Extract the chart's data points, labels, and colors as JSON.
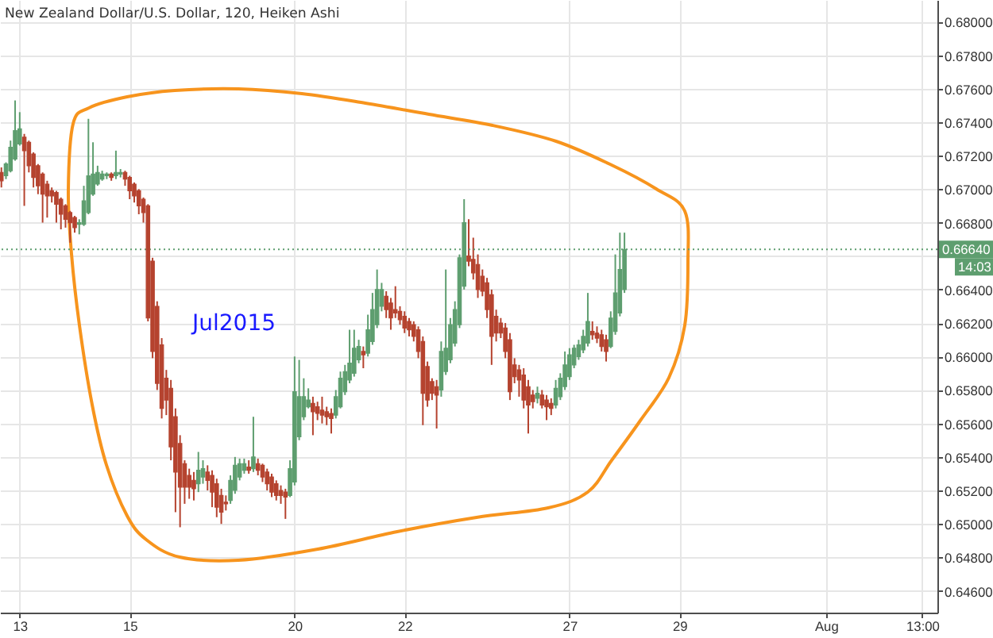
{
  "chart_data": {
    "type": "candlestick",
    "title": "New Zealand Dollar/U.S. Dollar, 120, Heiken Ashi",
    "categories": [
      null,
      null,
      null,
      null,
      "13",
      null,
      null,
      null,
      null,
      null,
      null,
      null,
      null,
      null,
      null,
      null,
      null,
      null,
      null,
      null,
      null,
      null,
      null,
      null,
      null,
      null,
      null,
      null,
      "15",
      null,
      null,
      null,
      null,
      null,
      null,
      null,
      null,
      null,
      null,
      null,
      null,
      null,
      null,
      null,
      null,
      null,
      null,
      null,
      null,
      null,
      null,
      null,
      null,
      null,
      null,
      null,
      null,
      null,
      null,
      null,
      null,
      null,
      null,
      null,
      "20",
      null,
      null,
      null,
      null,
      null,
      null,
      null,
      null,
      null,
      null,
      null,
      null,
      null,
      null,
      null,
      null,
      null,
      null,
      null,
      null,
      null,
      null,
      null,
      "22",
      null,
      null,
      null,
      null,
      null,
      null,
      null,
      null,
      null,
      null,
      null,
      null,
      null,
      null,
      null,
      null,
      null,
      null,
      null,
      null,
      null,
      null,
      null,
      null,
      null,
      null,
      null,
      null,
      null,
      null,
      null,
      null,
      null,
      null,
      null,
      "27",
      null,
      null,
      null,
      null,
      null,
      null,
      null,
      null,
      null,
      null,
      null,
      null,
      null,
      null,
      null,
      null,
      null,
      null,
      null,
      null,
      null,
      null,
      null,
      "29",
      null,
      null,
      null,
      null,
      null,
      null,
      null,
      null,
      null,
      null,
      null,
      null,
      null,
      null,
      null,
      null,
      null,
      null,
      null,
      null,
      null,
      null,
      null,
      null,
      null,
      null,
      null,
      null,
      null,
      null,
      null,
      "Aug",
      null,
      null,
      null,
      null,
      null,
      null,
      null,
      null,
      null,
      null,
      null,
      null,
      null,
      null,
      null,
      null,
      null,
      null,
      null,
      null,
      "13:00",
      null,
      null,
      null
    ],
    "ohlc": [
      [
        0.671,
        0.6713,
        0.6701,
        0.6705
      ],
      [
        0.6708,
        0.6716,
        0.6706,
        0.6715
      ],
      [
        0.6711,
        0.6729,
        0.671,
        0.6725
      ],
      [
        0.6718,
        0.6753,
        0.6717,
        0.6735
      ],
      [
        0.6727,
        0.6746,
        0.6726,
        0.6736
      ],
      [
        0.6731,
        0.6733,
        0.669,
        0.6723
      ],
      [
        0.6728,
        0.6729,
        0.671,
        0.6714
      ],
      [
        0.6721,
        0.6722,
        0.6701,
        0.6707
      ],
      [
        0.6714,
        0.6715,
        0.6697,
        0.6702
      ],
      [
        0.6709,
        0.671,
        0.668,
        0.6697
      ],
      [
        0.6703,
        0.6705,
        0.6683,
        0.6696
      ],
      [
        0.6699,
        0.6701,
        0.6692,
        0.6696
      ],
      [
        0.6698,
        0.6699,
        0.668,
        0.6691
      ],
      [
        0.6694,
        0.6695,
        0.6676,
        0.6685
      ],
      [
        0.669,
        0.6691,
        0.6677,
        0.6682
      ],
      [
        0.6686,
        0.6687,
        0.6668,
        0.668
      ],
      [
        0.6683,
        0.6684,
        0.6674,
        0.6677
      ],
      [
        0.6679,
        0.6682,
        0.6673,
        0.668
      ],
      [
        0.6679,
        0.6702,
        0.6678,
        0.6693
      ],
      [
        0.6686,
        0.6742,
        0.6685,
        0.6708
      ],
      [
        0.6697,
        0.6728,
        0.6696,
        0.6709
      ],
      [
        0.6703,
        0.6714,
        0.6702,
        0.671
      ],
      [
        0.6706,
        0.6711,
        0.6705,
        0.6709
      ],
      [
        0.6708,
        0.671,
        0.6706,
        0.6709
      ],
      [
        0.6709,
        0.671,
        0.6705,
        0.6707
      ],
      [
        0.6708,
        0.6723,
        0.6706,
        0.671
      ],
      [
        0.6709,
        0.6712,
        0.6707,
        0.671
      ],
      [
        0.671,
        0.6711,
        0.6702,
        0.6706
      ],
      [
        0.6707,
        0.6708,
        0.6694,
        0.6699
      ],
      [
        0.6703,
        0.6704,
        0.6692,
        0.6696
      ],
      [
        0.6699,
        0.67,
        0.6685,
        0.669
      ],
      [
        0.6694,
        0.6695,
        0.668,
        0.6686
      ],
      [
        0.669,
        0.6691,
        0.6621,
        0.6623
      ],
      [
        0.6657,
        0.6659,
        0.6599,
        0.6603
      ],
      [
        0.663,
        0.6633,
        0.658,
        0.6584
      ],
      [
        0.6607,
        0.6611,
        0.6563,
        0.6569
      ],
      [
        0.6587,
        0.6592,
        0.6565,
        0.6574
      ],
      [
        0.6581,
        0.6586,
        0.6538,
        0.6546
      ],
      [
        0.6564,
        0.6569,
        0.6507,
        0.6531
      ],
      [
        0.6548,
        0.6553,
        0.6498,
        0.6522
      ],
      [
        0.6536,
        0.6538,
        0.6512,
        0.6522
      ],
      [
        0.6529,
        0.6533,
        0.6515,
        0.6522
      ],
      [
        0.6526,
        0.6531,
        0.6514,
        0.6521
      ],
      [
        0.6524,
        0.6543,
        0.6519,
        0.6532
      ],
      [
        0.6528,
        0.6538,
        0.6524,
        0.6533
      ],
      [
        0.6531,
        0.6535,
        0.652,
        0.6526
      ],
      [
        0.6529,
        0.6532,
        0.651,
        0.6519
      ],
      [
        0.6524,
        0.6527,
        0.6504,
        0.651
      ],
      [
        0.6517,
        0.6521,
        0.65,
        0.6507
      ],
      [
        0.6513,
        0.6517,
        0.6508,
        0.6512
      ],
      [
        0.6514,
        0.6529,
        0.6512,
        0.6526
      ],
      [
        0.652,
        0.654,
        0.6518,
        0.6535
      ],
      [
        0.6528,
        0.6539,
        0.6526,
        0.6536
      ],
      [
        0.6532,
        0.6539,
        0.653,
        0.6536
      ],
      [
        0.6534,
        0.6538,
        0.653,
        0.6532
      ],
      [
        0.6533,
        0.6564,
        0.6531,
        0.654
      ],
      [
        0.6536,
        0.6539,
        0.6529,
        0.6532
      ],
      [
        0.6535,
        0.6536,
        0.6525,
        0.6528
      ],
      [
        0.6531,
        0.6533,
        0.652,
        0.6524
      ],
      [
        0.6528,
        0.653,
        0.6516,
        0.6519
      ],
      [
        0.6524,
        0.6526,
        0.6514,
        0.6517
      ],
      [
        0.652,
        0.6523,
        0.6512,
        0.6517
      ],
      [
        0.6519,
        0.6521,
        0.6503,
        0.6516
      ],
      [
        0.6517,
        0.6538,
        0.6516,
        0.6533
      ],
      [
        0.6525,
        0.66,
        0.6523,
        0.6579
      ],
      [
        0.6552,
        0.6598,
        0.655,
        0.6576
      ],
      [
        0.6564,
        0.6587,
        0.6562,
        0.6576
      ],
      [
        0.657,
        0.6581,
        0.6569,
        0.6574
      ],
      [
        0.6572,
        0.6576,
        0.6553,
        0.6567
      ],
      [
        0.657,
        0.6573,
        0.6562,
        0.6566
      ],
      [
        0.6568,
        0.6576,
        0.656,
        0.6565
      ],
      [
        0.6567,
        0.657,
        0.6559,
        0.6564
      ],
      [
        0.6566,
        0.6569,
        0.6554,
        0.6563
      ],
      [
        0.6565,
        0.658,
        0.6563,
        0.6576
      ],
      [
        0.657,
        0.6591,
        0.6569,
        0.6587
      ],
      [
        0.6579,
        0.6595,
        0.6577,
        0.6591
      ],
      [
        0.6586,
        0.6616,
        0.6584,
        0.6596
      ],
      [
        0.659,
        0.6616,
        0.6588,
        0.6605
      ],
      [
        0.6598,
        0.661,
        0.6596,
        0.6606
      ],
      [
        0.6603,
        0.6606,
        0.6593,
        0.6601
      ],
      [
        0.6602,
        0.6625,
        0.66,
        0.6616
      ],
      [
        0.6609,
        0.6638,
        0.6607,
        0.6628
      ],
      [
        0.6619,
        0.6652,
        0.6617,
        0.664
      ],
      [
        0.663,
        0.6644,
        0.6627,
        0.664
      ],
      [
        0.6636,
        0.6639,
        0.6623,
        0.6628
      ],
      [
        0.6632,
        0.6635,
        0.6616,
        0.6623
      ],
      [
        0.6628,
        0.6642,
        0.6623,
        0.6626
      ],
      [
        0.6627,
        0.663,
        0.6619,
        0.6622
      ],
      [
        0.6624,
        0.6627,
        0.6614,
        0.6617
      ],
      [
        0.6621,
        0.6623,
        0.6612,
        0.6616
      ],
      [
        0.6619,
        0.6621,
        0.6609,
        0.6612
      ],
      [
        0.6616,
        0.6618,
        0.6599,
        0.6603
      ],
      [
        0.6609,
        0.6612,
        0.6559,
        0.6578
      ],
      [
        0.6594,
        0.6597,
        0.657,
        0.6574
      ],
      [
        0.6585,
        0.6587,
        0.6574,
        0.6578
      ],
      [
        0.6582,
        0.6586,
        0.6557,
        0.6577
      ],
      [
        0.658,
        0.6609,
        0.6576,
        0.6603
      ],
      [
        0.6591,
        0.6652,
        0.6589,
        0.6605
      ],
      [
        0.6598,
        0.6623,
        0.6596,
        0.6619
      ],
      [
        0.6608,
        0.6633,
        0.6606,
        0.6628
      ],
      [
        0.6619,
        0.6661,
        0.6617,
        0.6659
      ],
      [
        0.6642,
        0.6694,
        0.664,
        0.668
      ],
      [
        0.666,
        0.6682,
        0.6654,
        0.6657
      ],
      [
        0.6658,
        0.6671,
        0.6646,
        0.665
      ],
      [
        0.6655,
        0.6661,
        0.6635,
        0.664
      ],
      [
        0.6648,
        0.6652,
        0.6636,
        0.6639
      ],
      [
        0.6644,
        0.6647,
        0.6623,
        0.6628
      ],
      [
        0.6637,
        0.664,
        0.6595,
        0.6612
      ],
      [
        0.6624,
        0.6628,
        0.6609,
        0.6614
      ],
      [
        0.662,
        0.6623,
        0.6611,
        0.6614
      ],
      [
        0.6617,
        0.662,
        0.6599,
        0.6603
      ],
      [
        0.661,
        0.6614,
        0.6574,
        0.6579
      ],
      [
        0.6595,
        0.6599,
        0.6584,
        0.6588
      ],
      [
        0.6592,
        0.6595,
        0.6576,
        0.6586
      ],
      [
        0.6589,
        0.6593,
        0.6569,
        0.6574
      ],
      [
        0.6582,
        0.6586,
        0.6554,
        0.6571
      ],
      [
        0.6577,
        0.658,
        0.6569,
        0.6573
      ],
      [
        0.6575,
        0.6582,
        0.6572,
        0.6578
      ],
      [
        0.6577,
        0.658,
        0.6569,
        0.6571
      ],
      [
        0.6574,
        0.6577,
        0.6562,
        0.657
      ],
      [
        0.6572,
        0.6575,
        0.6565,
        0.6569
      ],
      [
        0.6571,
        0.6586,
        0.6569,
        0.6581
      ],
      [
        0.6576,
        0.659,
        0.6574,
        0.6587
      ],
      [
        0.6582,
        0.6603,
        0.658,
        0.6595
      ],
      [
        0.6588,
        0.6605,
        0.6586,
        0.6601
      ],
      [
        0.6595,
        0.6607,
        0.6593,
        0.6605
      ],
      [
        0.66,
        0.661,
        0.6598,
        0.6607
      ],
      [
        0.6604,
        0.6616,
        0.6602,
        0.6612
      ],
      [
        0.6608,
        0.6638,
        0.6606,
        0.6621
      ],
      [
        0.6615,
        0.6621,
        0.661,
        0.6613
      ],
      [
        0.6614,
        0.6618,
        0.6608,
        0.6611
      ],
      [
        0.6613,
        0.6616,
        0.6603,
        0.6606
      ],
      [
        0.661,
        0.6613,
        0.6597,
        0.6603
      ],
      [
        0.6606,
        0.6627,
        0.6605,
        0.6623
      ],
      [
        0.6615,
        0.6661,
        0.6613,
        0.6638
      ],
      [
        0.6626,
        0.6674,
        0.6624,
        0.6652
      ],
      [
        0.664,
        0.6674,
        0.6638,
        0.6664
      ],
      null,
      null,
      null,
      null,
      null,
      null,
      null,
      null,
      null,
      null,
      null,
      null,
      null,
      null,
      null,
      null,
      null,
      null,
      null,
      null,
      null,
      null,
      null,
      null,
      null,
      null,
      null,
      null,
      null,
      null,
      null,
      null,
      null,
      null,
      null,
      null,
      null,
      null,
      null,
      null,
      null,
      null,
      null,
      null,
      null,
      null,
      null,
      null,
      null,
      null,
      null,
      null,
      null,
      null,
      null,
      null,
      null,
      null,
      null,
      null,
      null,
      null,
      null,
      null,
      null,
      null,
      null,
      null
    ],
    "colors": [
      "#b5432f",
      "#5e9e6f",
      "#5e9e6f",
      "#5e9e6f",
      "#5e9e6f",
      "#b5432f",
      "#b5432f",
      "#b5432f",
      "#b5432f",
      "#b5432f",
      "#b5432f",
      "#b5432f",
      "#b5432f",
      "#b5432f",
      "#b5432f",
      "#b5432f",
      "#b5432f",
      "#5e9e6f",
      "#5e9e6f",
      "#5e9e6f",
      "#5e9e6f",
      "#5e9e6f",
      "#5e9e6f",
      "#5e9e6f",
      "#b5432f",
      "#5e9e6f",
      "#5e9e6f",
      "#b5432f",
      "#b5432f",
      "#b5432f",
      "#b5432f",
      "#b5432f",
      "#b5432f",
      "#b5432f",
      "#b5432f",
      "#b5432f",
      "#b5432f",
      "#b5432f",
      "#b5432f",
      "#b5432f",
      "#b5432f",
      "#b5432f",
      "#b5432f",
      "#5e9e6f",
      "#5e9e6f",
      "#b5432f",
      "#b5432f",
      "#b5432f",
      "#b5432f",
      "#b5432f",
      "#5e9e6f",
      "#5e9e6f",
      "#5e9e6f",
      "#5e9e6f",
      "#b5432f",
      "#5e9e6f",
      "#b5432f",
      "#b5432f",
      "#b5432f",
      "#b5432f",
      "#b5432f",
      "#b5432f",
      "#b5432f",
      "#5e9e6f",
      "#5e9e6f",
      "#5e9e6f",
      "#5e9e6f",
      "#5e9e6f",
      "#b5432f",
      "#b5432f",
      "#b5432f",
      "#b5432f",
      "#b5432f",
      "#5e9e6f",
      "#5e9e6f",
      "#5e9e6f",
      "#5e9e6f",
      "#5e9e6f",
      "#5e9e6f",
      "#b5432f",
      "#5e9e6f",
      "#5e9e6f",
      "#5e9e6f",
      "#5e9e6f",
      "#b5432f",
      "#b5432f",
      "#b5432f",
      "#b5432f",
      "#b5432f",
      "#b5432f",
      "#b5432f",
      "#b5432f",
      "#b5432f",
      "#b5432f",
      "#b5432f",
      "#b5432f",
      "#5e9e6f",
      "#5e9e6f",
      "#5e9e6f",
      "#5e9e6f",
      "#5e9e6f",
      "#5e9e6f",
      "#b5432f",
      "#b5432f",
      "#b5432f",
      "#b5432f",
      "#b5432f",
      "#b5432f",
      "#b5432f",
      "#b5432f",
      "#b5432f",
      "#b5432f",
      "#b5432f",
      "#b5432f",
      "#b5432f",
      "#b5432f",
      "#b5432f",
      "#5e9e6f",
      "#b5432f",
      "#b5432f",
      "#b5432f",
      "#5e9e6f",
      "#5e9e6f",
      "#5e9e6f",
      "#5e9e6f",
      "#5e9e6f",
      "#5e9e6f",
      "#5e9e6f",
      "#5e9e6f",
      "#b5432f",
      "#b5432f",
      "#b5432f",
      "#b5432f",
      "#5e9e6f",
      "#5e9e6f",
      "#5e9e6f",
      "#5e9e6f",
      null,
      null,
      null,
      null,
      null,
      null,
      null,
      null,
      null,
      null,
      null,
      null,
      null,
      null,
      null,
      null,
      null,
      null,
      null,
      null,
      null,
      null,
      null,
      null,
      null,
      null,
      null,
      null,
      null,
      null,
      null,
      null,
      null,
      null,
      null,
      null,
      null,
      null,
      null,
      null,
      null,
      null,
      null,
      null,
      null,
      null,
      null,
      null,
      null,
      null,
      null,
      null,
      null,
      null,
      null,
      null,
      null,
      null,
      null,
      null,
      null,
      null,
      null,
      null,
      null,
      null,
      null,
      null
    ],
    "ylim": [
      0.6447,
      0.6813
    ],
    "yticks": [
      {
        "value": 0.646,
        "label": "0.64600"
      },
      {
        "value": 0.648,
        "label": "0.64800"
      },
      {
        "value": 0.65,
        "label": "0.65000"
      },
      {
        "value": 0.652,
        "label": "0.65200"
      },
      {
        "value": 0.654,
        "label": "0.65400"
      },
      {
        "value": 0.656,
        "label": "0.65600"
      },
      {
        "value": 0.658,
        "label": "0.65800"
      },
      {
        "value": 0.66,
        "label": "0.66000"
      },
      {
        "value": 0.662,
        "label": "0.66200"
      },
      {
        "value": 0.664,
        "label": "0.66400"
      },
      {
        "value": 0.666,
        "label": null
      },
      {
        "value": 0.668,
        "label": "0.66800"
      },
      {
        "value": 0.67,
        "label": "0.67000"
      },
      {
        "value": 0.672,
        "label": "0.67200"
      },
      {
        "value": 0.674,
        "label": "0.67400"
      },
      {
        "value": 0.676,
        "label": "0.67600"
      },
      {
        "value": 0.678,
        "label": "0.67800"
      },
      {
        "value": 0.68,
        "label": "0.68000"
      }
    ],
    "grid": true,
    "ref_lines": [
      {
        "axis": "y",
        "value": 0.6664,
        "label": "0.66640",
        "color": "#5e9e6f",
        "line_style": "dotted"
      }
    ],
    "annotations": [
      "Jul2015",
      "14:03"
    ]
  }
}
